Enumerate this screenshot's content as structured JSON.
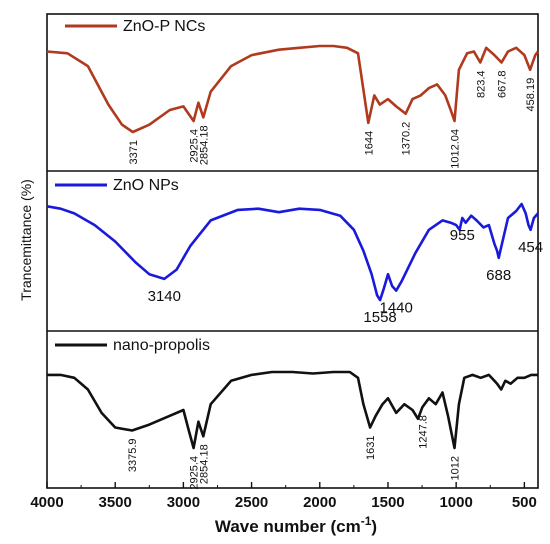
{
  "chart_data": {
    "type": "line",
    "xlabel": "Wave number (cm",
    "xlabel_sup": "-1",
    "xlabel_close": ")",
    "ylabel": "Trancemittance (%)",
    "xlim": [
      4000,
      400
    ],
    "x_ticks": [
      "4000",
      "3500",
      "3000",
      "2500",
      "2000",
      "1500",
      "1000",
      "500"
    ],
    "panels": [
      {
        "name": "ZnO-P NCs",
        "color": "#b03a1e",
        "x": [
          4000,
          3850,
          3700,
          3550,
          3450,
          3371,
          3250,
          3100,
          3000,
          2925.4,
          2890,
          2854.18,
          2800,
          2650,
          2500,
          2300,
          2150,
          2000,
          1900,
          1800,
          1720,
          1690,
          1644,
          1600,
          1560,
          1500,
          1440,
          1370.2,
          1320,
          1260,
          1200,
          1140,
          1080,
          1040,
          1012.04,
          980,
          920,
          870,
          823.4,
          780,
          720,
          667.8,
          620,
          560,
          500,
          458.19,
          420,
          400
        ],
        "y": [
          0.94,
          0.93,
          0.86,
          0.65,
          0.54,
          0.5,
          0.54,
          0.62,
          0.64,
          0.56,
          0.66,
          0.58,
          0.72,
          0.86,
          0.92,
          0.95,
          0.96,
          0.97,
          0.97,
          0.96,
          0.93,
          0.78,
          0.55,
          0.7,
          0.65,
          0.68,
          0.64,
          0.6,
          0.68,
          0.7,
          0.74,
          0.76,
          0.7,
          0.62,
          0.56,
          0.84,
          0.93,
          0.94,
          0.88,
          0.96,
          0.92,
          0.88,
          0.94,
          0.96,
          0.92,
          0.84,
          0.92,
          0.94
        ],
        "peak_labels": [
          {
            "x": 3371,
            "label": "3371"
          },
          {
            "x": 2925.4,
            "label": "2925.4"
          },
          {
            "x": 2854.18,
            "label": "2854.18"
          },
          {
            "x": 1644,
            "label": "1644"
          },
          {
            "x": 1370.2,
            "label": "1370.2"
          },
          {
            "x": 1012.04,
            "label": "1012.04"
          },
          {
            "x": 823.4,
            "label": "823.4"
          },
          {
            "x": 667.8,
            "label": "667.8"
          },
          {
            "x": 458.19,
            "label": "458.19"
          }
        ]
      },
      {
        "name": "ZnO NPs",
        "color": "#1a1adb",
        "x": [
          4000,
          3900,
          3800,
          3650,
          3500,
          3350,
          3250,
          3140,
          3050,
          2950,
          2800,
          2600,
          2450,
          2300,
          2150,
          2000,
          1850,
          1750,
          1680,
          1620,
          1580,
          1558,
          1530,
          1500,
          1470,
          1440,
          1400,
          1300,
          1200,
          1100,
          1040,
          1000,
          975,
          955,
          930,
          890,
          850,
          800,
          760,
          720,
          700,
          688,
          660,
          620,
          560,
          520,
          490,
          470,
          454,
          430,
          400
        ],
        "y": [
          0.88,
          0.86,
          0.82,
          0.72,
          0.58,
          0.4,
          0.3,
          0.26,
          0.34,
          0.54,
          0.76,
          0.85,
          0.86,
          0.83,
          0.86,
          0.85,
          0.8,
          0.68,
          0.5,
          0.3,
          0.12,
          0.08,
          0.18,
          0.3,
          0.2,
          0.16,
          0.24,
          0.48,
          0.68,
          0.76,
          0.74,
          0.72,
          0.68,
          0.78,
          0.74,
          0.8,
          0.76,
          0.7,
          0.72,
          0.56,
          0.5,
          0.44,
          0.58,
          0.78,
          0.84,
          0.9,
          0.82,
          0.72,
          0.68,
          0.78,
          0.82
        ],
        "peak_labels": [
          {
            "x": 3140,
            "label": "3140"
          },
          {
            "x": 1558,
            "label": "1558"
          },
          {
            "x": 1440,
            "label": "1440"
          },
          {
            "x": 955,
            "label": "955"
          },
          {
            "x": 688,
            "label": "688"
          },
          {
            "x": 454,
            "label": "454"
          }
        ]
      },
      {
        "name": "nano-propolis",
        "color": "#111111",
        "x": [
          4000,
          3900,
          3800,
          3700,
          3600,
          3500,
          3375.9,
          3250,
          3100,
          3000,
          2960,
          2925.4,
          2890,
          2854.18,
          2800,
          2650,
          2500,
          2350,
          2200,
          2050,
          1900,
          1780,
          1720,
          1680,
          1631,
          1590,
          1540,
          1500,
          1440,
          1380,
          1320,
          1280,
          1247.8,
          1200,
          1150,
          1100,
          1060,
          1012,
          980,
          940,
          880,
          820,
          760,
          700,
          670,
          640,
          600,
          550,
          500,
          450,
          400
        ],
        "y": [
          0.9,
          0.9,
          0.88,
          0.8,
          0.64,
          0.54,
          0.52,
          0.56,
          0.62,
          0.66,
          0.52,
          0.4,
          0.58,
          0.48,
          0.7,
          0.86,
          0.9,
          0.92,
          0.92,
          0.91,
          0.92,
          0.92,
          0.88,
          0.7,
          0.54,
          0.62,
          0.7,
          0.74,
          0.64,
          0.7,
          0.66,
          0.6,
          0.68,
          0.74,
          0.7,
          0.78,
          0.62,
          0.4,
          0.7,
          0.88,
          0.9,
          0.88,
          0.9,
          0.84,
          0.8,
          0.86,
          0.84,
          0.88,
          0.88,
          0.9,
          0.9
        ],
        "peak_labels": [
          {
            "x": 3375.9,
            "label": "3375.9"
          },
          {
            "x": 2925.4,
            "label": "2925.4"
          },
          {
            "x": 2854.18,
            "label": "2854.18"
          },
          {
            "x": 1631,
            "label": "1631"
          },
          {
            "x": 1247.8,
            "label": "1247.8"
          },
          {
            "x": 1012,
            "label": "1012"
          }
        ]
      }
    ]
  }
}
